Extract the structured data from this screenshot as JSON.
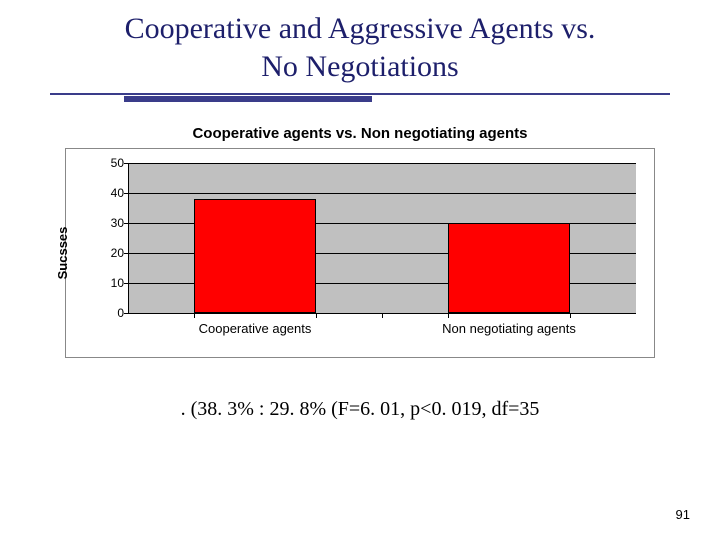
{
  "title_line1": "Cooperative and Aggressive Agents vs.",
  "title_line2": "No Negotiations",
  "title_color": "#1d1f6b",
  "title_fontsize": 30,
  "rule_color": "#3a3c8a",
  "rule_thick_left_pct": 12,
  "rule_thick_width_pct": 40,
  "chart": {
    "title": "Cooperative agents vs. Non negotiating agents",
    "title_fontsize": 15,
    "ylabel": "Sucsses",
    "background_color": "#c0c0c0",
    "grid_color": "#000000",
    "bar_color": "#ff0000",
    "bar_border_color": "#000000",
    "ymin": 0,
    "ymax": 50,
    "ytick_step": 10,
    "yticks": [
      0,
      10,
      20,
      30,
      40,
      50
    ],
    "bar_width_pct": 24,
    "bars": [
      {
        "label": "Cooperative agents",
        "value": 38,
        "center_pct": 25
      },
      {
        "label": "Non negotiating agents",
        "value": 30,
        "center_pct": 75
      }
    ]
  },
  "stats_text": ". (38. 3% : 29. 8% (F=6. 01, p<0. 019, df=35",
  "stats_fontsize": 20,
  "page_number": "91"
}
